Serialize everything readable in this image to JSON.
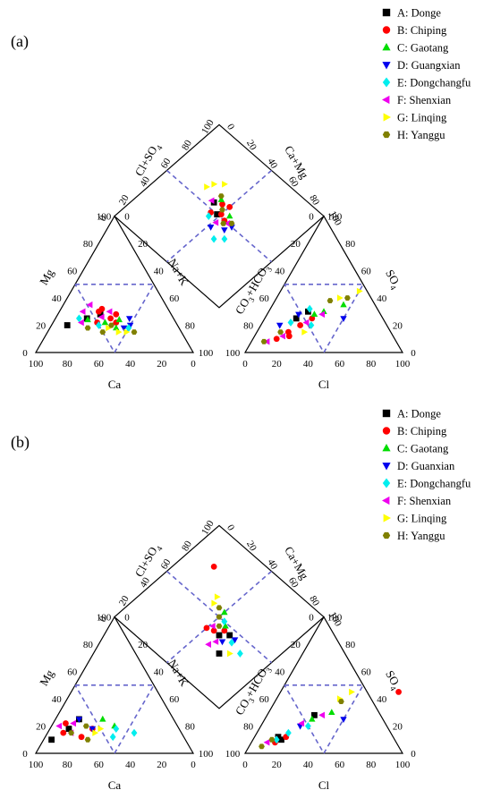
{
  "panels": [
    {
      "label": "(a)",
      "legend": [
        {
          "label": "A: Donge",
          "marker": "square",
          "color": "#000000"
        },
        {
          "label": "B: Chiping",
          "marker": "circle",
          "color": "#ff0000"
        },
        {
          "label": "C: Gaotang",
          "marker": "triangle-up",
          "color": "#00dd00"
        },
        {
          "label": "D: Guangxian",
          "marker": "triangle-down",
          "color": "#0000ee"
        },
        {
          "label": "E: Dongchangfu",
          "marker": "diamond",
          "color": "#00eeee"
        },
        {
          "label": "F: Shenxian",
          "marker": "triangle-left",
          "color": "#ee00ee"
        },
        {
          "label": "G: Linqing",
          "marker": "triangle-right",
          "color": "#ffff00"
        },
        {
          "label": "H: Yanggu",
          "marker": "hexagon",
          "color": "#808000"
        }
      ],
      "labels": {
        "mg": "Mg",
        "na": "Na+K",
        "ca": "Ca",
        "cl": "Cl",
        "so4": "SO",
        "co3": "CO",
        "clso4": "Cl+SO",
        "camg": "Ca+Mg"
      }
    },
    {
      "label": "(b)",
      "legend": [
        {
          "label": "A: Donge",
          "marker": "square",
          "color": "#000000"
        },
        {
          "label": "B: Chiping",
          "marker": "circle",
          "color": "#ff0000"
        },
        {
          "label": "C: Gaotang",
          "marker": "triangle-up",
          "color": "#00dd00"
        },
        {
          "label": "D: Guanxian",
          "marker": "triangle-down",
          "color": "#0000ee"
        },
        {
          "label": "E: Dongchangfu",
          "marker": "diamond",
          "color": "#00eeee"
        },
        {
          "label": "F: Shenxian",
          "marker": "triangle-left",
          "color": "#ee00ee"
        },
        {
          "label": "G: Linqing",
          "marker": "triangle-right",
          "color": "#ffff00"
        },
        {
          "label": "H: Yanggu",
          "marker": "hexagon",
          "color": "#808000"
        }
      ],
      "labels": {
        "mg": "Mg",
        "na": "Na+K",
        "ca": "Ca",
        "cl": "Cl",
        "so4": "SO",
        "co3": "CO",
        "clso4": "Cl+SO",
        "camg": "Ca+Mg"
      }
    }
  ],
  "chart_data": [
    {
      "type": "scatter",
      "title": "(a)",
      "diagram": "Piper trilinear",
      "axis_ticks": [
        0,
        20,
        40,
        60,
        80,
        100
      ],
      "cation_triangle": {
        "series": [
          {
            "name": "A: Donge",
            "points": [
              [
                70,
                20
              ],
              [
                55,
                25
              ],
              [
                45,
                28
              ]
            ]
          },
          {
            "name": "B: Chiping",
            "points": [
              [
                45,
                30
              ],
              [
                40,
                25
              ],
              [
                35,
                28
              ],
              [
                50,
                22
              ],
              [
                42,
                32
              ],
              [
                38,
                22
              ]
            ]
          },
          {
            "name": "C: Gaotang",
            "points": [
              [
                45,
                22
              ],
              [
                40,
                18
              ],
              [
                35,
                24
              ],
              [
                55,
                24
              ]
            ]
          },
          {
            "name": "D: Guangxian",
            "points": [
              [
                30,
                20
              ],
              [
                35,
                18
              ],
              [
                28,
                25
              ]
            ]
          },
          {
            "name": "E: Dongchangfu",
            "points": [
              [
                50,
                20
              ],
              [
                32,
                18
              ],
              [
                60,
                25
              ]
            ]
          },
          {
            "name": "F: Shenxian",
            "points": [
              [
                55,
                30
              ],
              [
                48,
                35
              ],
              [
                60,
                22
              ],
              [
                45,
                26
              ],
              [
                38,
                30
              ]
            ]
          },
          {
            "name": "G: Linqing",
            "points": [
              [
                40,
                15
              ],
              [
                35,
                15
              ],
              [
                45,
                18
              ]
            ]
          },
          {
            "name": "H: Yanggu",
            "points": [
              [
                50,
                15
              ],
              [
                58,
                18
              ],
              [
                42,
                20
              ],
              [
                30,
                15
              ]
            ]
          }
        ]
      },
      "anion_triangle": {
        "series": [
          {
            "name": "A: Donge",
            "points": [
              [
                25,
                30
              ],
              [
                20,
                25
              ]
            ]
          },
          {
            "name": "B: Chiping",
            "points": [
              [
                15,
                10
              ],
              [
                20,
                15
              ],
              [
                25,
                20
              ],
              [
                30,
                25
              ],
              [
                22,
                12
              ]
            ]
          },
          {
            "name": "C: Gaotang",
            "points": [
              [
                30,
                28
              ],
              [
                35,
                30
              ],
              [
                45,
                35
              ]
            ]
          },
          {
            "name": "D: Guangxian",
            "points": [
              [
                12,
                20
              ],
              [
                20,
                28
              ],
              [
                50,
                25
              ]
            ]
          },
          {
            "name": "E: Dongchangfu",
            "points": [
              [
                18,
                22
              ],
              [
                32,
                20
              ],
              [
                25,
                32
              ]
            ]
          },
          {
            "name": "F: Shenxian",
            "points": [
              [
                10,
                8
              ],
              [
                18,
                12
              ],
              [
                28,
                22
              ],
              [
                35,
                28
              ]
            ]
          },
          {
            "name": "G: Linqing",
            "points": [
              [
                40,
                40
              ],
              [
                50,
                45
              ],
              [
                30,
                15
              ]
            ]
          },
          {
            "name": "H: Yanggu",
            "points": [
              [
                8,
                8
              ],
              [
                15,
                15
              ],
              [
                35,
                38
              ],
              [
                45,
                40
              ]
            ]
          }
        ]
      },
      "diamond": {
        "series": [
          {
            "name": "A: Donge",
            "points": [
              [
                55,
                60
              ],
              [
                50,
                52
              ]
            ]
          },
          {
            "name": "B: Chiping",
            "points": [
              [
                52,
                50
              ],
              [
                58,
                55
              ],
              [
                50,
                45
              ],
              [
                60,
                50
              ],
              [
                48,
                56
              ]
            ]
          },
          {
            "name": "C: Gaotang",
            "points": [
              [
                55,
                45
              ],
              [
                60,
                58
              ]
            ]
          },
          {
            "name": "D: Guangxian",
            "points": [
              [
                45,
                40
              ],
              [
                50,
                38
              ],
              [
                40,
                48
              ]
            ]
          },
          {
            "name": "E: Dongchangfu",
            "points": [
              [
                40,
                35
              ],
              [
                45,
                55
              ],
              [
                35,
                40
              ]
            ]
          },
          {
            "name": "F: Shenxian",
            "points": [
              [
                55,
                62
              ],
              [
                50,
                42
              ],
              [
                45,
                48
              ]
            ]
          },
          {
            "name": "G: Linqing",
            "points": [
              [
                65,
                70
              ],
              [
                70,
                65
              ],
              [
                60,
                72
              ]
            ]
          },
          {
            "name": "H: Yanggu",
            "points": [
              [
                55,
                52
              ],
              [
                48,
                44
              ],
              [
                62,
                60
              ],
              [
                52,
                40
              ]
            ]
          }
        ]
      }
    },
    {
      "type": "scatter",
      "title": "(b)",
      "diagram": "Piper trilinear",
      "axis_ticks": [
        0,
        20,
        40,
        60,
        80,
        100
      ],
      "cation_triangle": {
        "series": [
          {
            "name": "A: Donge",
            "points": [
              [
                85,
                10
              ],
              [
                60,
                25
              ],
              [
                70,
                18
              ]
            ]
          },
          {
            "name": "B: Chiping",
            "points": [
              [
                75,
                15
              ],
              [
                65,
                12
              ],
              [
                70,
                22
              ],
              [
                55,
                18
              ]
            ]
          },
          {
            "name": "C: Gaotang",
            "points": [
              [
                45,
                25
              ],
              [
                40,
                20
              ]
            ]
          },
          {
            "name": "D: Guanxian",
            "points": [
              [
                60,
                25
              ],
              [
                55,
                18
              ]
            ]
          },
          {
            "name": "E: Dongchangfu",
            "points": [
              [
                30,
                15
              ],
              [
                45,
                12
              ],
              [
                40,
                18
              ]
            ]
          },
          {
            "name": "F: Shenxian",
            "points": [
              [
                75,
                20
              ],
              [
                65,
                22
              ],
              [
                70,
                15
              ]
            ]
          },
          {
            "name": "G: Linqing",
            "points": [
              [
                55,
                15
              ],
              [
                50,
                18
              ]
            ]
          },
          {
            "name": "H: Yanggu",
            "points": [
              [
                70,
                15
              ],
              [
                62,
                10
              ],
              [
                58,
                20
              ]
            ]
          }
        ]
      },
      "anion_triangle": {
        "series": [
          {
            "name": "A: Donge",
            "points": [
              [
                18,
                10
              ],
              [
                15,
                12
              ],
              [
                30,
                28
              ]
            ]
          },
          {
            "name": "B: Chiping",
            "points": [
              [
                15,
                8
              ],
              [
                20,
                12
              ],
              [
                75,
                45
              ]
            ]
          },
          {
            "name": "C: Gaotang",
            "points": [
              [
                30,
                25
              ],
              [
                40,
                30
              ]
            ]
          },
          {
            "name": "D: Guanxian",
            "points": [
              [
                25,
                20
              ],
              [
                50,
                25
              ]
            ]
          },
          {
            "name": "E: Dongchangfu",
            "points": [
              [
                15,
                10
              ],
              [
                20,
                15
              ],
              [
                30,
                20
              ]
            ]
          },
          {
            "name": "F: Shenxian",
            "points": [
              [
                10,
                8
              ],
              [
                25,
                22
              ],
              [
                35,
                28
              ]
            ]
          },
          {
            "name": "G: Linqing",
            "points": [
              [
                40,
                40
              ],
              [
                45,
                45
              ]
            ]
          },
          {
            "name": "H: Yanggu",
            "points": [
              [
                8,
                5
              ],
              [
                12,
                10
              ],
              [
                42,
                38
              ]
            ]
          }
        ]
      },
      "diamond": {
        "series": [
          {
            "name": "A: Donge",
            "points": [
              [
                30,
                30
              ],
              [
                40,
                40
              ],
              [
                45,
                35
              ]
            ]
          },
          {
            "name": "B: Chiping",
            "points": [
              [
                40,
                45
              ],
              [
                75,
                80
              ],
              [
                45,
                40
              ],
              [
                38,
                50
              ]
            ]
          },
          {
            "name": "C: Gaotang",
            "points": [
              [
                48,
                42
              ],
              [
                55,
                50
              ]
            ]
          },
          {
            "name": "D: Guanxian",
            "points": [
              [
                38,
                35
              ],
              [
                45,
                30
              ]
            ]
          },
          {
            "name": "E: Dongchangfu",
            "points": [
              [
                42,
                30
              ],
              [
                40,
                20
              ],
              [
                50,
                45
              ]
            ]
          },
          {
            "name": "F: Shenxian",
            "points": [
              [
                35,
                38
              ],
              [
                42,
                48
              ],
              [
                30,
                40
              ]
            ]
          },
          {
            "name": "G: Linqing",
            "points": [
              [
                55,
                60
              ],
              [
                60,
                62
              ],
              [
                35,
                25
              ]
            ]
          },
          {
            "name": "H: Yanggu",
            "points": [
              [
                50,
                50
              ],
              [
                45,
                45
              ],
              [
                55,
                55
              ]
            ]
          }
        ]
      }
    }
  ]
}
